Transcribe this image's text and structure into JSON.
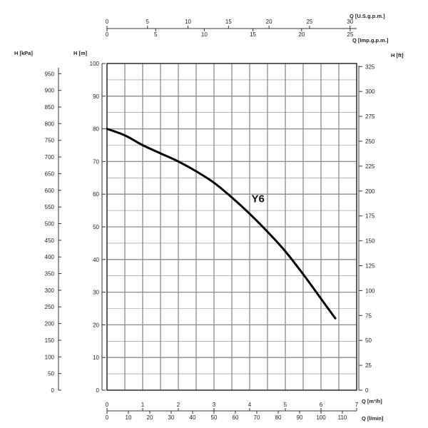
{
  "chart_data": {
    "type": "line",
    "series": [
      {
        "name": "Y6",
        "points": [
          {
            "q_m3h": 0.0,
            "h_m": 80.0
          },
          {
            "q_m3h": 0.5,
            "h_m": 78.0
          },
          {
            "q_m3h": 1.0,
            "h_m": 75.0
          },
          {
            "q_m3h": 1.5,
            "h_m": 72.5
          },
          {
            "q_m3h": 2.0,
            "h_m": 70.0
          },
          {
            "q_m3h": 2.5,
            "h_m": 67.0
          },
          {
            "q_m3h": 3.0,
            "h_m": 63.5
          },
          {
            "q_m3h": 3.5,
            "h_m": 59.0
          },
          {
            "q_m3h": 4.0,
            "h_m": 54.0
          },
          {
            "q_m3h": 4.5,
            "h_m": 48.5
          },
          {
            "q_m3h": 5.0,
            "h_m": 42.5
          },
          {
            "q_m3h": 5.5,
            "h_m": 35.5
          },
          {
            "q_m3h": 6.0,
            "h_m": 28.0
          },
          {
            "q_m3h": 6.4,
            "h_m": 22.0
          }
        ]
      }
    ],
    "x_axis": {
      "label": "Q [m³/h]",
      "range": [
        0,
        7
      ],
      "ticks": [
        "0",
        "1",
        "2",
        "3",
        "4",
        "5",
        "6",
        "7"
      ]
    },
    "x_axis_lmin": {
      "label": "Q [l/min]",
      "ticks": [
        "0",
        "10",
        "20",
        "30",
        "40",
        "50",
        "60",
        "70",
        "80",
        "90",
        "100",
        "110"
      ]
    },
    "x_axis_usgpm": {
      "label": "Q [U.S.g.p.m.]",
      "ticks": [
        "0",
        "5",
        "10",
        "15",
        "20",
        "25",
        "30"
      ]
    },
    "x_axis_impgpm": {
      "label": "Q [Imp.g.p.m.]",
      "ticks": [
        "0",
        "5",
        "10",
        "15",
        "20",
        "25"
      ]
    },
    "y_axis": {
      "label": "H [m]",
      "range": [
        0,
        100
      ],
      "ticks": [
        "0",
        "10",
        "20",
        "30",
        "40",
        "50",
        "60",
        "70",
        "80",
        "90",
        "100"
      ]
    },
    "y_axis_kpa": {
      "label": "H [kPa]",
      "ticks": [
        "0",
        "50",
        "100",
        "150",
        "200",
        "250",
        "300",
        "350",
        "400",
        "450",
        "500",
        "550",
        "600",
        "650",
        "700",
        "750",
        "800",
        "850",
        "900",
        "950"
      ]
    },
    "y_axis_ft": {
      "label": "H [ft]",
      "ticks": [
        "0",
        "25",
        "50",
        "75",
        "100",
        "125",
        "150",
        "175",
        "200",
        "225",
        "250",
        "275",
        "300",
        "325"
      ]
    },
    "grid": true
  },
  "colors": {
    "grid": "#8a8a8a",
    "frame": "#333333",
    "curve": "#000000",
    "background": "#ffffff"
  }
}
